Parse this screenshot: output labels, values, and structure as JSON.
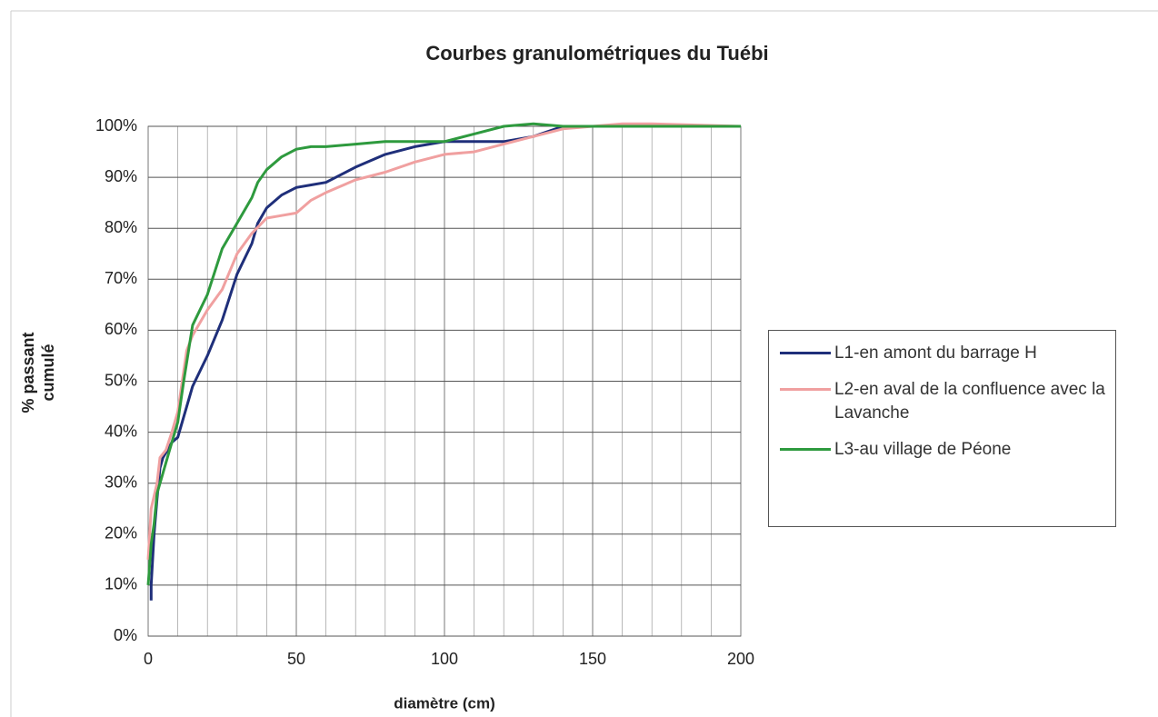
{
  "chart_data": {
    "type": "line",
    "title": "Courbes granulométriques du Tuébi",
    "xlabel": "diamètre (cm)",
    "ylabel": "% passant cumulé",
    "xlim": [
      0,
      200
    ],
    "xticks": [
      0,
      50,
      100,
      150,
      200
    ],
    "xminor_ticks": [
      10,
      20,
      30,
      40,
      60,
      70,
      80,
      90,
      110,
      120,
      130,
      140,
      160,
      170,
      180,
      190
    ],
    "ylim": [
      0,
      100
    ],
    "yticks": [
      {
        "value": 0,
        "label": "0%"
      },
      {
        "value": 10,
        "label": "10%"
      },
      {
        "value": 20,
        "label": "20%"
      },
      {
        "value": 30,
        "label": "30%"
      },
      {
        "value": 40,
        "label": "40%"
      },
      {
        "value": 50,
        "label": "50%"
      },
      {
        "value": 60,
        "label": "60%"
      },
      {
        "value": 70,
        "label": "70%"
      },
      {
        "value": 80,
        "label": "80%"
      },
      {
        "value": 90,
        "label": "90%"
      },
      {
        "value": 100,
        "label": "100%"
      }
    ],
    "grid": true,
    "legend": "right",
    "series": [
      {
        "name": "L1-en amont du barrage H",
        "color": "#1f2f7a",
        "x": [
          1,
          1,
          2,
          3,
          4,
          5,
          6,
          8,
          10,
          12,
          15,
          20,
          25,
          30,
          35,
          37,
          40,
          45,
          50,
          55,
          60,
          70,
          80,
          90,
          100,
          110,
          120,
          130,
          140,
          200
        ],
        "values": [
          7,
          10,
          20,
          27,
          33,
          35,
          36,
          38,
          39,
          43,
          49,
          55,
          62,
          71,
          77,
          81,
          84,
          86.5,
          88,
          88.5,
          89,
          92,
          94.5,
          96,
          97,
          97,
          97,
          98,
          100,
          100
        ]
      },
      {
        "name": "L2-en aval de la confluence avec la Lavanche",
        "color": "#f0a0a0",
        "x": [
          0,
          1,
          3,
          4,
          6,
          8,
          10,
          13,
          15,
          20,
          25,
          30,
          35,
          40,
          45,
          50,
          55,
          60,
          70,
          80,
          90,
          100,
          110,
          120,
          130,
          140,
          150,
          160,
          170,
          200
        ],
        "values": [
          15,
          25,
          30,
          35,
          36.5,
          40,
          44,
          56,
          59,
          64,
          68,
          75,
          79,
          82,
          82.5,
          83,
          85.5,
          87,
          89.5,
          91,
          93,
          94.5,
          95,
          96.5,
          98,
          99.5,
          100,
          100.5,
          100.5,
          100
        ]
      },
      {
        "name": "L3-au village de Péone",
        "color": "#2e9a3e",
        "x": [
          0,
          1,
          2,
          3,
          5,
          7,
          10,
          12,
          15,
          20,
          25,
          30,
          35,
          37,
          40,
          45,
          50,
          55,
          60,
          70,
          80,
          90,
          100,
          110,
          120,
          130,
          140,
          200
        ],
        "values": [
          10,
          18,
          22,
          28,
          32,
          36,
          42,
          50,
          61,
          67,
          76,
          81,
          86,
          89,
          91.5,
          94,
          95.5,
          96,
          96,
          96.5,
          97,
          97,
          97,
          98.5,
          100,
          100.5,
          100,
          100
        ]
      }
    ]
  }
}
